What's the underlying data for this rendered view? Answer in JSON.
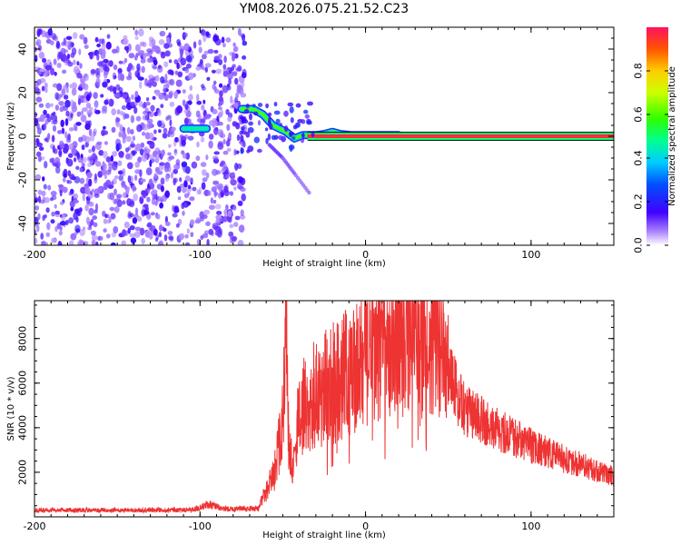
{
  "title": "YM08.2026.075.21.52.C23",
  "chart_data": [
    {
      "type": "heatmap",
      "name": "spectrogram",
      "xlabel": "Height of straight line (km)",
      "ylabel": "Frequency (Hz)",
      "xlim": [
        -200,
        150
      ],
      "ylim": [
        -50,
        50
      ],
      "xticks": [
        -200,
        -100,
        0,
        100
      ],
      "yticks": [
        -40,
        -20,
        0,
        20,
        40
      ],
      "colorbar": {
        "label": "Normalized spectral amplitude",
        "range": [
          0,
          1
        ],
        "ticks": [
          0.0,
          0.2,
          0.4,
          0.6,
          0.8
        ]
      },
      "features": [
        {
          "kind": "noise",
          "x_range": [
            -200,
            -73
          ],
          "freq_range": [
            -50,
            48
          ],
          "amplitude": 0.1
        },
        {
          "kind": "line",
          "points": [
            [
              -110,
              3.5
            ],
            [
              -96,
              3.5
            ]
          ],
          "amplitude": 0.45
        },
        {
          "kind": "line",
          "points": [
            [
              -75,
              12.5
            ],
            [
              -68,
              12.5
            ],
            [
              -62,
              10
            ],
            [
              -56,
              5
            ],
            [
              -48,
              2
            ],
            [
              -43,
              -1
            ],
            [
              -38,
              0.5
            ],
            [
              -30,
              0.5
            ],
            [
              -25,
              1
            ],
            [
              -20,
              2
            ],
            [
              -15,
              1
            ],
            [
              -8,
              0.5
            ],
            [
              0,
              0.5
            ],
            [
              20,
              0.5
            ]
          ],
          "amplitude": 0.6
        },
        {
          "kind": "line",
          "points": [
            [
              -35,
              0
            ],
            [
              150,
              0
            ]
          ],
          "amplitude": 1.0
        },
        {
          "kind": "line",
          "points": [
            [
              -58,
              -4
            ],
            [
              -50,
              -10
            ],
            [
              -42,
              -18
            ],
            [
              -33,
              -27
            ]
          ],
          "amplitude": 0.1
        }
      ]
    },
    {
      "type": "line",
      "name": "snr",
      "xlabel": "Height of straight line (km)",
      "ylabel": "SNR (10 * v/v)",
      "xlim": [
        -200,
        150
      ],
      "ylim": [
        0,
        9700
      ],
      "xticks": [
        -200,
        -100,
        0,
        100
      ],
      "yticks": [
        2000,
        4000,
        6000,
        8000
      ],
      "color": "#ee3333",
      "envelope": {
        "x": [
          -200,
          -105,
          -95,
          -85,
          -65,
          -60,
          -55,
          -50,
          -48,
          -46,
          -44,
          -40,
          -30,
          -20,
          -10,
          0,
          10,
          20,
          30,
          40,
          45,
          50,
          55,
          60,
          80,
          100,
          120,
          150
        ],
        "y": [
          300,
          300,
          550,
          350,
          350,
          1200,
          2000,
          4500,
          7700,
          3500,
          2000,
          4800,
          5500,
          6000,
          6500,
          7200,
          7800,
          8600,
          8700,
          8200,
          8000,
          7000,
          5500,
          4800,
          3900,
          3200,
          2600,
          1800
        ]
      }
    }
  ]
}
